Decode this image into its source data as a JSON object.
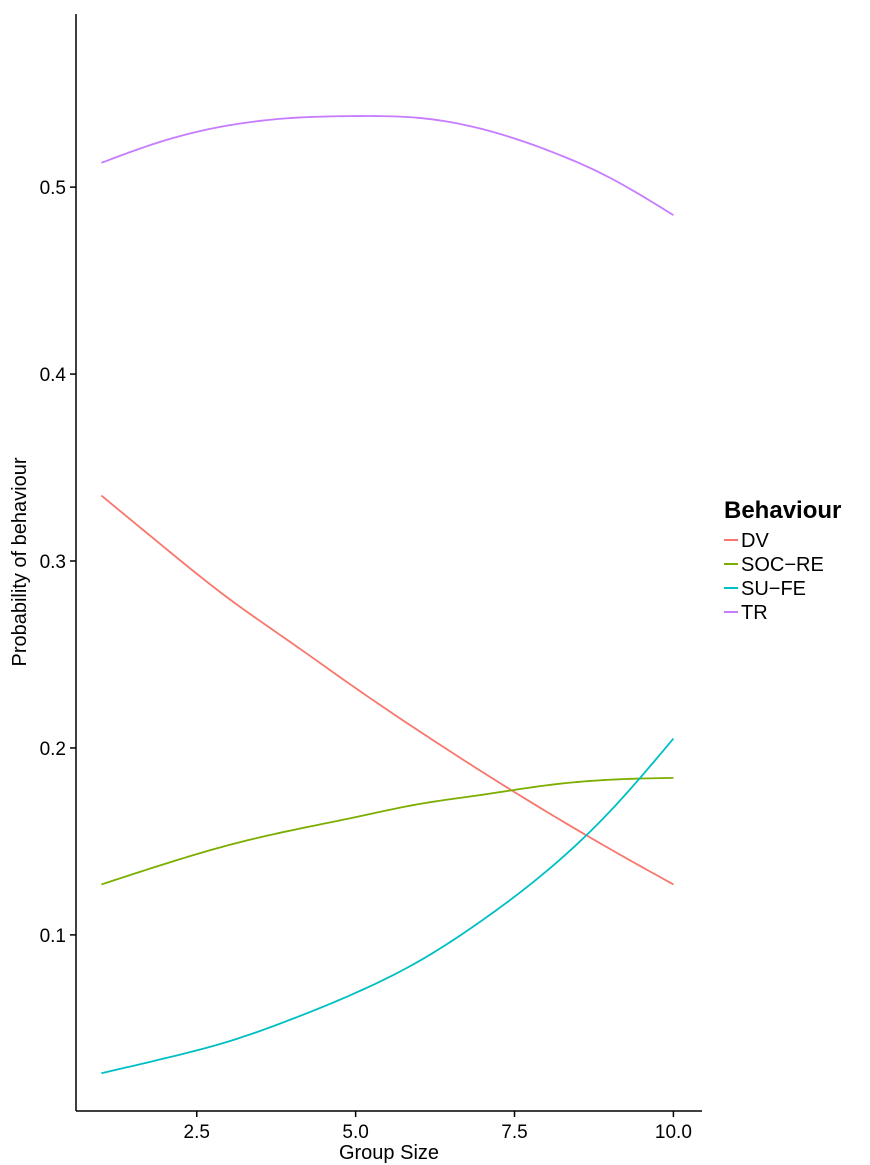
{
  "chart_data": {
    "type": "line",
    "xlabel": "Group Size",
    "ylabel": "Probability of behaviour",
    "xlim": [
      0.6,
      10.45
    ],
    "ylim": [
      0.0058,
      0.5926
    ],
    "x_ticks": [
      2.5,
      5.0,
      7.5,
      10.0
    ],
    "x_tick_labels": [
      "2.5",
      "5.0",
      "7.5",
      "10.0"
    ],
    "y_ticks": [
      0.1,
      0.2,
      0.3,
      0.4,
      0.5
    ],
    "y_tick_labels": [
      "0.1",
      "0.2",
      "0.3",
      "0.4",
      "0.5"
    ],
    "grid": false,
    "legend": {
      "title": "Behaviour",
      "position": "right"
    },
    "x": [
      1,
      2,
      3,
      4,
      5,
      6,
      7,
      8,
      9,
      10
    ],
    "series": [
      {
        "name": "DV",
        "color": "#F8766D",
        "values": [
          0.335,
          0.307,
          0.28,
          0.256,
          0.232,
          0.209,
          0.187,
          0.166,
          0.146,
          0.127
        ]
      },
      {
        "name": "SOC−RE",
        "color": "#7CAE00",
        "values": [
          0.127,
          0.138,
          0.148,
          0.156,
          0.163,
          0.17,
          0.175,
          0.18,
          0.183,
          0.184
        ]
      },
      {
        "name": "SU−FE",
        "color": "#00BFC4",
        "values": [
          0.026,
          0.034,
          0.043,
          0.055,
          0.069,
          0.086,
          0.108,
          0.134,
          0.166,
          0.205
        ]
      },
      {
        "name": "TR",
        "color": "#C77CFF",
        "values": [
          0.513,
          0.525,
          0.533,
          0.537,
          0.538,
          0.537,
          0.531,
          0.52,
          0.505,
          0.485
        ]
      }
    ]
  }
}
